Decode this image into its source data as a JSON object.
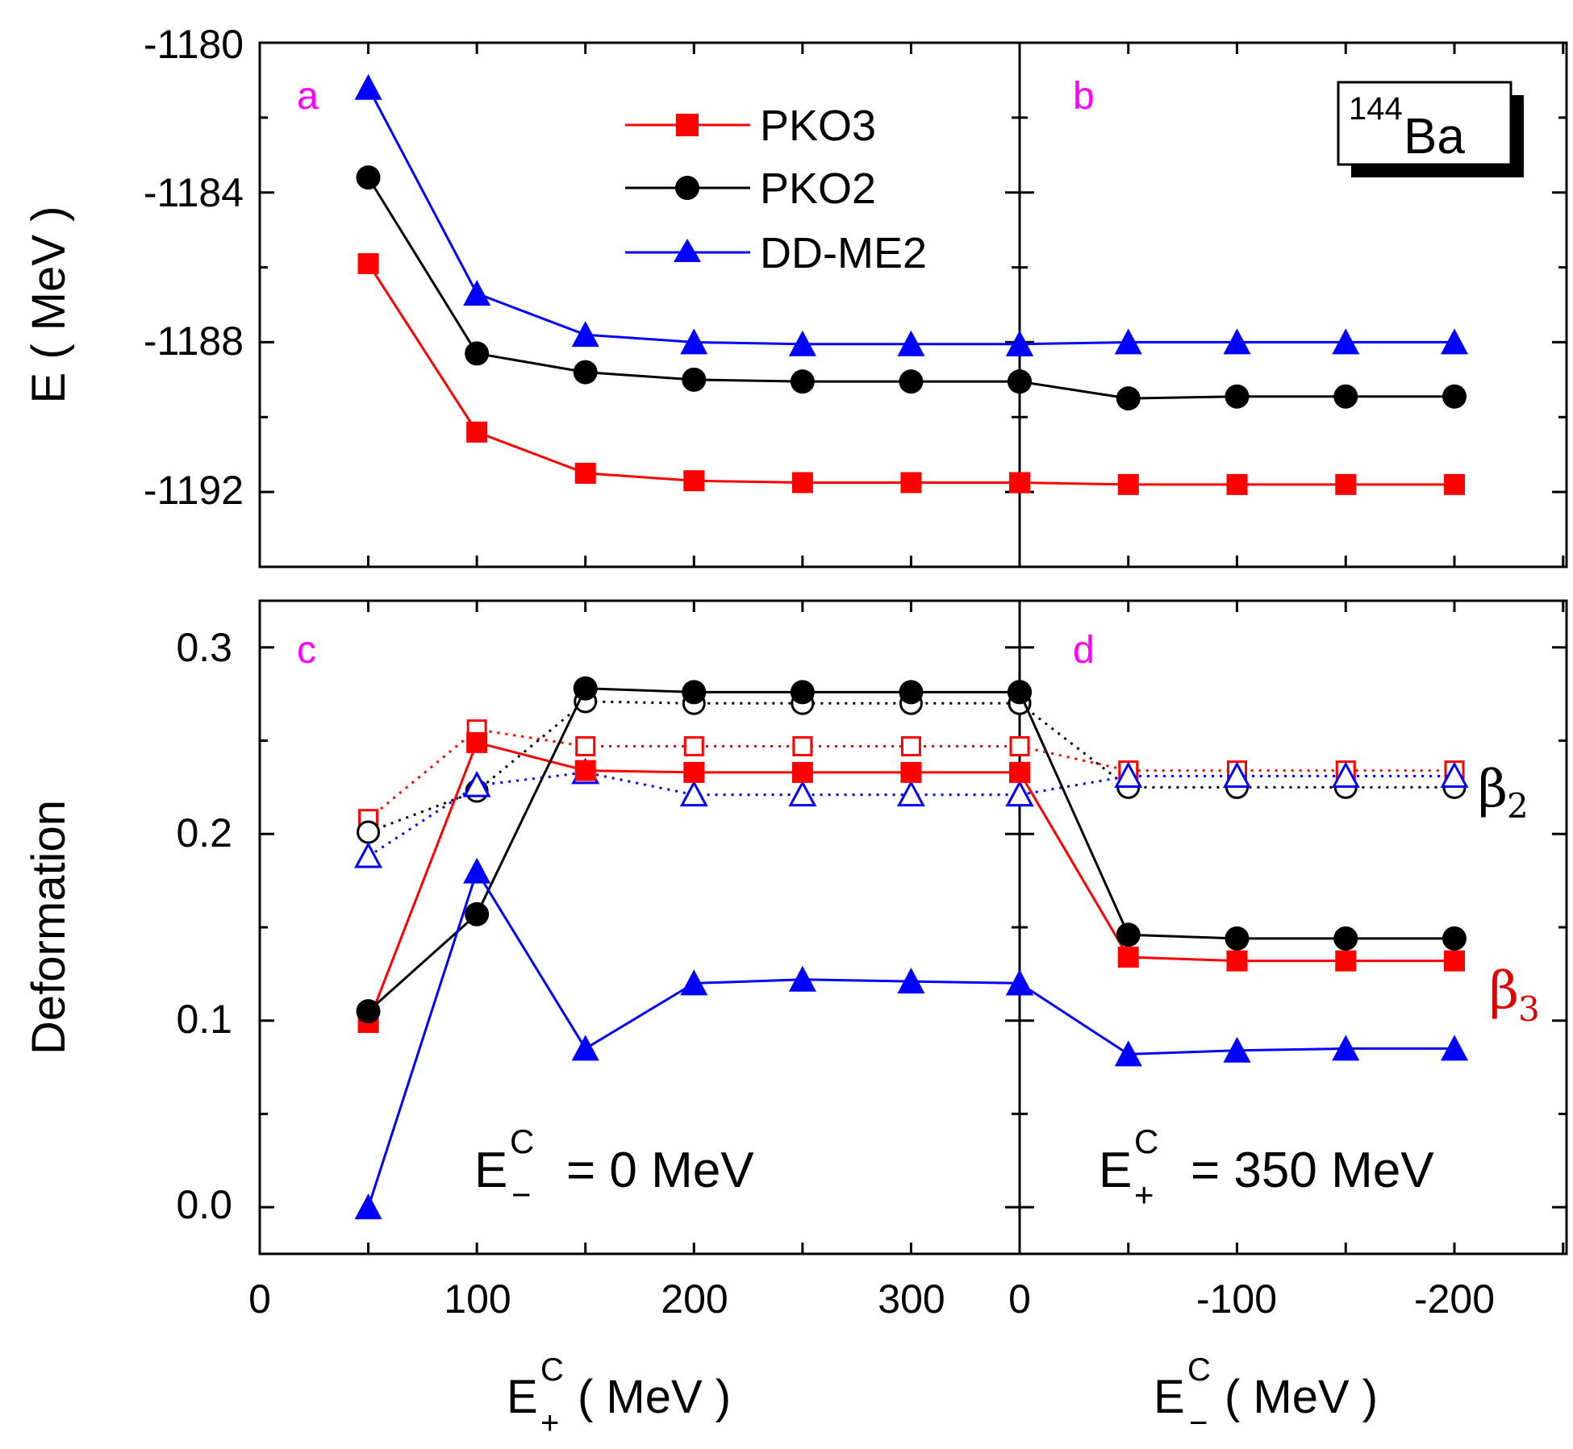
{
  "chart_data": [
    {
      "panel": "a",
      "type": "line",
      "ylabel": "E ( MeV )",
      "xlabel_main": "E",
      "xlabel_sup": "C",
      "xlabel_sub": "+",
      "xlabel_units": "( MeV )",
      "xticks": [
        "0",
        "100",
        "200",
        "300"
      ],
      "yticks": [
        "-1180",
        "-1184",
        "-1188",
        "-1192"
      ],
      "x": [
        50,
        100,
        150,
        200,
        250,
        300,
        350
      ],
      "xlim": [
        0,
        350
      ],
      "ylim": [
        -1194,
        -1180
      ],
      "series": [
        {
          "name": "PKO3",
          "values": [
            -1185.9,
            -1190.4,
            -1191.5,
            -1191.7,
            -1191.75,
            -1191.75,
            -1191.75
          ]
        },
        {
          "name": "PKO2",
          "values": [
            -1183.6,
            -1188.3,
            -1188.8,
            -1189.0,
            -1189.05,
            -1189.05,
            -1189.05
          ]
        },
        {
          "name": "DD-ME2",
          "values": [
            -1181.2,
            -1186.7,
            -1187.8,
            -1188.0,
            -1188.05,
            -1188.05,
            -1188.05
          ]
        }
      ]
    },
    {
      "panel": "b",
      "type": "line",
      "nucleus_mass": "144",
      "nucleus_symbol": "Ba",
      "xlabel_main": "E",
      "xlabel_sup": "C",
      "xlabel_sub": "−",
      "xlabel_units": "( MeV )",
      "xticks": [
        "0",
        "-100",
        "-200"
      ],
      "x": [
        0,
        -50,
        -100,
        -150,
        -200
      ],
      "xlim": [
        0,
        -250
      ],
      "ylim": [
        -1194,
        -1180
      ],
      "series": [
        {
          "name": "PKO3",
          "values": [
            -1191.75,
            -1191.8,
            -1191.8,
            -1191.8,
            -1191.8
          ]
        },
        {
          "name": "PKO2",
          "values": [
            -1189.05,
            -1189.5,
            -1189.45,
            -1189.45,
            -1189.45
          ]
        },
        {
          "name": "DD-ME2",
          "values": [
            -1188.05,
            -1188.0,
            -1188.0,
            -1188.0,
            -1188.0
          ]
        }
      ]
    },
    {
      "panel": "c",
      "type": "line",
      "ylabel": "Deformation",
      "annotation_main": "E",
      "annotation_sup": "C",
      "annotation_sub": "−",
      "annotation_value": "= 0 MeV",
      "yticks": [
        "0.0",
        "0.1",
        "0.2",
        "0.3"
      ],
      "x": [
        50,
        100,
        150,
        200,
        250,
        300,
        350
      ],
      "xlim": [
        0,
        350
      ],
      "ylim": [
        -0.025,
        0.325
      ],
      "series": [
        {
          "name": "PKO3",
          "quantity": "beta2",
          "values": [
            0.208,
            0.256,
            0.247,
            0.247,
            0.247,
            0.247,
            0.247
          ]
        },
        {
          "name": "PKO2",
          "quantity": "beta2",
          "values": [
            0.201,
            0.223,
            0.271,
            0.27,
            0.27,
            0.27,
            0.27
          ]
        },
        {
          "name": "DD-ME2",
          "quantity": "beta2",
          "values": [
            0.188,
            0.226,
            0.233,
            0.221,
            0.221,
            0.221,
            0.221
          ]
        },
        {
          "name": "PKO3",
          "quantity": "beta3",
          "values": [
            0.099,
            0.249,
            0.234,
            0.233,
            0.233,
            0.233,
            0.233
          ]
        },
        {
          "name": "PKO2",
          "quantity": "beta3",
          "values": [
            0.105,
            0.157,
            0.278,
            0.276,
            0.276,
            0.276,
            0.276
          ]
        },
        {
          "name": "DD-ME2",
          "quantity": "beta3",
          "values": [
            0.0,
            0.18,
            0.085,
            0.12,
            0.122,
            0.121,
            0.12
          ]
        }
      ]
    },
    {
      "panel": "d",
      "type": "line",
      "annotation_main": "E",
      "annotation_sup": "C",
      "annotation_sub": "+",
      "annotation_value": "= 350 MeV",
      "beta2_symbol": "β",
      "beta2_sub": "2",
      "beta3_symbol": "β",
      "beta3_sub": "3",
      "x": [
        0,
        -50,
        -100,
        -150,
        -200
      ],
      "xlim": [
        0,
        -250
      ],
      "ylim": [
        -0.025,
        0.325
      ],
      "series": [
        {
          "name": "PKO3",
          "quantity": "beta2",
          "values": [
            0.247,
            0.234,
            0.234,
            0.234,
            0.234
          ]
        },
        {
          "name": "PKO2",
          "quantity": "beta2",
          "values": [
            0.27,
            0.225,
            0.225,
            0.225,
            0.225
          ]
        },
        {
          "name": "DD-ME2",
          "quantity": "beta2",
          "values": [
            0.221,
            0.231,
            0.231,
            0.231,
            0.231
          ]
        },
        {
          "name": "PKO3",
          "quantity": "beta3",
          "values": [
            0.233,
            0.134,
            0.132,
            0.132,
            0.132
          ]
        },
        {
          "name": "PKO2",
          "quantity": "beta3",
          "values": [
            0.276,
            0.146,
            0.144,
            0.144,
            0.144
          ]
        },
        {
          "name": "DD-ME2",
          "quantity": "beta3",
          "values": [
            0.12,
            0.082,
            0.084,
            0.085,
            0.085
          ]
        }
      ]
    }
  ],
  "legend": [
    {
      "name": "PKO3",
      "marker": "square",
      "color": "#ff0000"
    },
    {
      "name": "PKO2",
      "marker": "circle",
      "color": "#000000"
    },
    {
      "name": "DD-ME2",
      "marker": "triangle",
      "color": "#0000ff"
    }
  ],
  "colors": {
    "PKO3": "#ff0000",
    "PKO2": "#000000",
    "DD-ME2": "#0000ff",
    "panel_label": "#ff00ff"
  }
}
